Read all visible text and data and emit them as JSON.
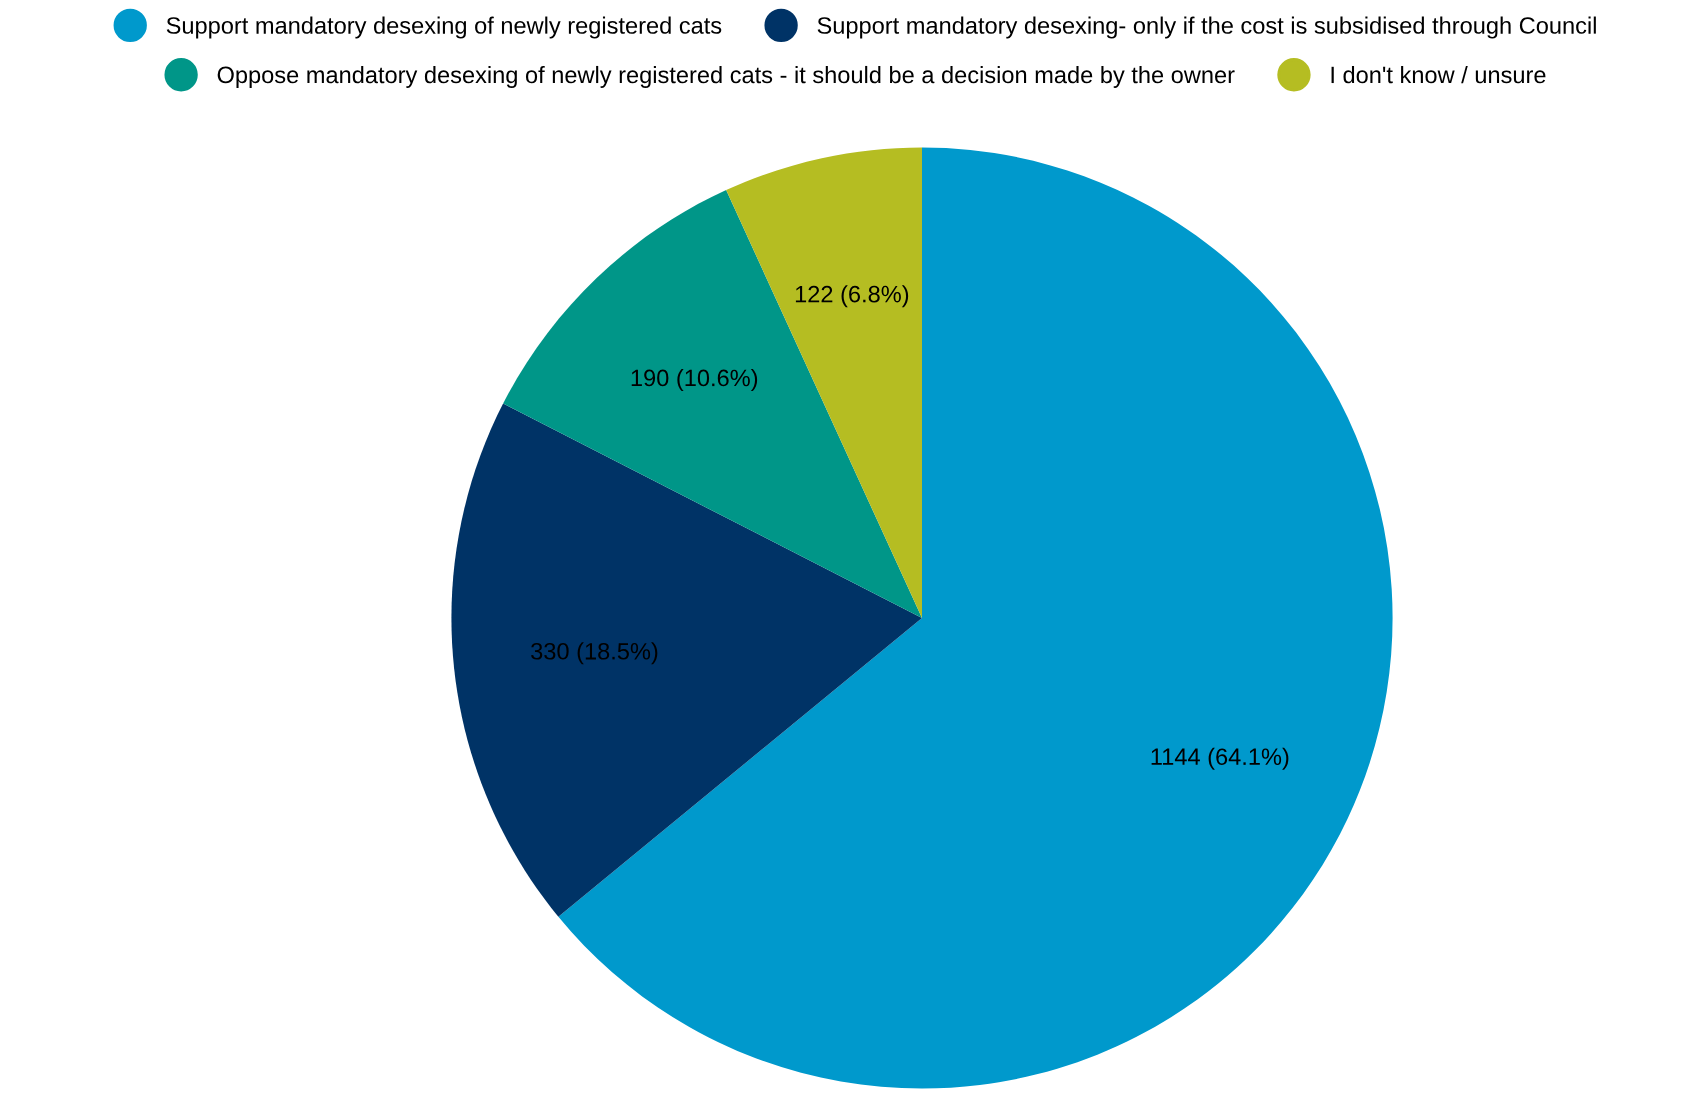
{
  "chart_data": {
    "type": "pie",
    "categories": [
      "Support mandatory desexing of newly registered cats",
      "Support mandatory desexing- only if the cost is subsidised through Council",
      "Oppose mandatory desexing of newly registered cats - it should be a decision made by the owner",
      "I don't know / unsure"
    ],
    "values": [
      1144,
      330,
      190,
      122
    ],
    "colors": [
      "#0099cc",
      "#003366",
      "#009688",
      "#b5bd22"
    ],
    "value_labels": [
      "1144 (64.1%)",
      "330 (18.5%)",
      "190 (10.6%)",
      "122 (6.8%)"
    ],
    "legend": "top"
  }
}
